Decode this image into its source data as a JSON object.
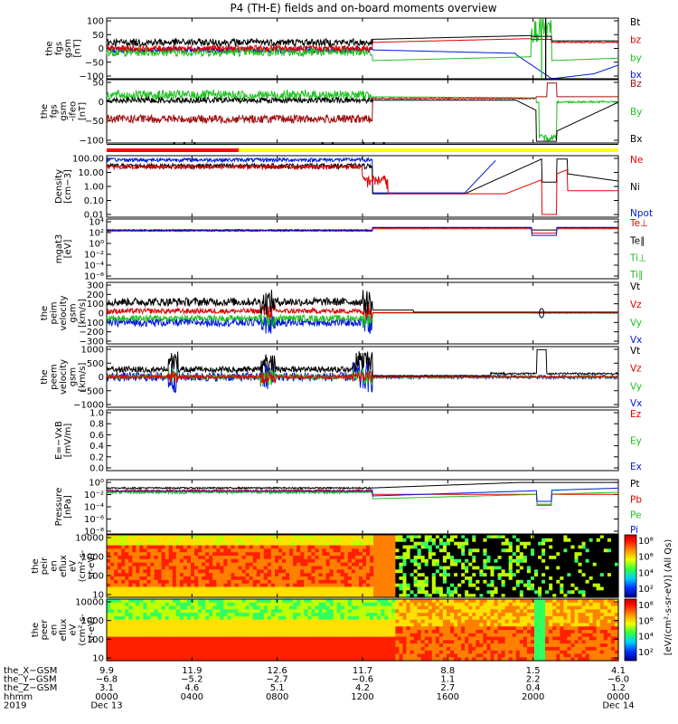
{
  "title": "P4 (TH-E) fields and on-board moments overview",
  "colors": {
    "black": "#000000",
    "red": "#e00000",
    "green": "#20c020",
    "blue": "#0018d8",
    "darkred": "#a01010",
    "yellow": "#ffff00",
    "brightred": "#ff0000"
  },
  "chart_data": [
    {
      "type": "line",
      "ylabel": [
        "the",
        "fgs",
        "gsm",
        "[nT]"
      ],
      "yticks": [
        "100",
        "50",
        "0",
        "−50",
        "−100"
      ],
      "ylim": [
        -100,
        100
      ],
      "series": [
        {
          "name": "Bt",
          "color": "#000000"
        },
        {
          "name": "bz",
          "color": "#e00000"
        },
        {
          "name": "by",
          "color": "#20c020"
        },
        {
          "name": "bx",
          "color": "#0018d8"
        }
      ]
    },
    {
      "type": "line",
      "ylabel": [
        "the",
        "fgs",
        "gsm",
        "-ifeo",
        "[nT]"
      ],
      "yticks": [
        "50",
        "0",
        "−50",
        "−100"
      ],
      "ylim": [
        -125,
        60
      ],
      "series": [
        {
          "name": "Bz",
          "color": "#a01010"
        },
        {
          "name": "By",
          "color": "#20c020"
        },
        {
          "name": "Bx",
          "color": "#000000"
        }
      ]
    },
    {
      "type": "line",
      "ylabel": [
        "Density",
        "[cm−3]"
      ],
      "yticks": [
        "100.00",
        "10.00",
        "1.00",
        "0.10",
        "0.01"
      ],
      "yscale": "log",
      "series": [
        {
          "name": "Ne",
          "color": "#e00000"
        },
        {
          "name": "Ni",
          "color": "#000000"
        },
        {
          "name": "Npot",
          "color": "#0018d8"
        }
      ]
    },
    {
      "type": "line",
      "ylabel": [
        "mgat3",
        "[eV]"
      ],
      "yticks": [
        "10⁴",
        "10²",
        "10⁰",
        "10⁻²",
        "10⁻⁴",
        "10⁻⁶"
      ],
      "yscale": "log",
      "series": [
        {
          "name": "Te⊥",
          "color": "#e00000"
        },
        {
          "name": "Te∥",
          "color": "#000000"
        },
        {
          "name": "Ti⊥",
          "color": "#20c020"
        },
        {
          "name": "Ti∥",
          "color": "#20c020"
        }
      ]
    },
    {
      "type": "line",
      "ylabel": [
        "the",
        "peim",
        "velocity",
        "gsm",
        "[km/s]"
      ],
      "yticks": [
        "300",
        "200",
        "100",
        "0",
        "−100",
        "−200",
        "−300"
      ],
      "ylim": [
        -300,
        300
      ],
      "series": [
        {
          "name": "Vt",
          "color": "#000000"
        },
        {
          "name": "Vz",
          "color": "#e00000"
        },
        {
          "name": "Vy",
          "color": "#20c020"
        },
        {
          "name": "Vx",
          "color": "#0018d8"
        }
      ]
    },
    {
      "type": "line",
      "ylabel": [
        "the",
        "peem",
        "velocity",
        "gsm",
        "[km/s]"
      ],
      "yticks": [
        "1000",
        "500",
        "0",
        "−500",
        "−1000"
      ],
      "ylim": [
        -1000,
        1000
      ],
      "series": [
        {
          "name": "Vt",
          "color": "#000000"
        },
        {
          "name": "Vz",
          "color": "#e00000"
        },
        {
          "name": "Vy",
          "color": "#20c020"
        },
        {
          "name": "Vx",
          "color": "#0018d8"
        }
      ]
    },
    {
      "type": "line",
      "ylabel": [
        "E=−VxB",
        "[mV/m]"
      ],
      "yticks": [
        "1.0",
        "0.8",
        "0.6",
        "0.4",
        "0.2",
        "0.0"
      ],
      "ylim": [
        0,
        1
      ],
      "series": [
        {
          "name": "Ez",
          "color": "#e00000"
        },
        {
          "name": "Ey",
          "color": "#20c020"
        },
        {
          "name": "Ex",
          "color": "#0018d8"
        }
      ]
    },
    {
      "type": "line",
      "ylabel": [
        "Pressure",
        "[nPa]"
      ],
      "yticks": [
        "10⁰",
        "10⁻²",
        "10⁻⁴",
        "10⁻⁶",
        "10⁻⁸"
      ],
      "yscale": "log",
      "series": [
        {
          "name": "Pt",
          "color": "#000000"
        },
        {
          "name": "Pb",
          "color": "#e00000"
        },
        {
          "name": "Pe",
          "color": "#20c020"
        },
        {
          "name": "Pi",
          "color": "#0018d8"
        }
      ]
    },
    {
      "type": "heatmap",
      "ylabel": [
        "the",
        "peir",
        "en",
        "eflux",
        "eV",
        "(cm²-s-",
        "sr-eV)"
      ],
      "yticks": [
        "10000",
        "1000",
        "100",
        "10"
      ],
      "yscale": "log"
    },
    {
      "type": "heatmap",
      "ylabel": [
        "the",
        "peer",
        "en",
        "eflux",
        "eV",
        "(cm²-s-",
        "sr-eV)"
      ],
      "yticks": [
        "10000",
        "1000",
        "100",
        "10"
      ],
      "yscale": "log"
    }
  ],
  "colorbar": {
    "ticks": [
      "10⁸",
      "10⁶",
      "10⁴",
      "10²"
    ],
    "label": "[eV/(cm²-s-sr-eV)] (All Qs)"
  },
  "x_axis": {
    "rows": [
      {
        "label": "the_X−GSM",
        "values": [
          "9.9",
          "11.9",
          "12.6",
          "11.7",
          "8.8",
          "1.5",
          "4.1"
        ]
      },
      {
        "label": "the_Y−GSM",
        "values": [
          "−6.8",
          "−5.2",
          "−2.7",
          "−0.6",
          "1.1",
          "2.2",
          "−6.0"
        ]
      },
      {
        "label": "the_Z−GSM",
        "values": [
          "3.1",
          "4.6",
          "5.1",
          "4.2",
          "2.7",
          "0.4",
          "1.2"
        ]
      },
      {
        "label": "hhmm",
        "values": [
          "0000",
          "0400",
          "0800",
          "1200",
          "1600",
          "2000",
          "0000"
        ]
      },
      {
        "label": "2019",
        "values": [
          "Dec 13",
          "",
          "",
          "",
          "",
          "",
          "Dec 14"
        ]
      }
    ]
  }
}
